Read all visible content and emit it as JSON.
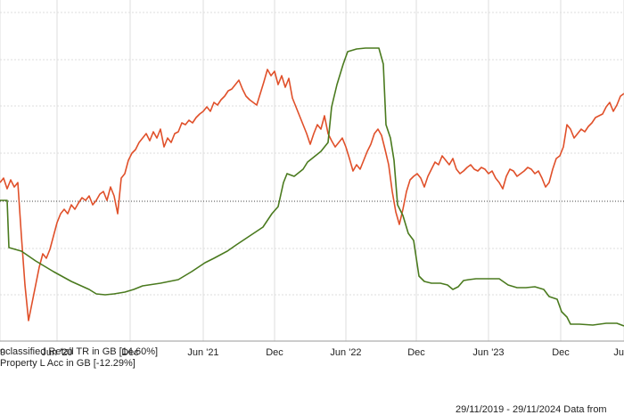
{
  "chart_data": {
    "type": "line",
    "title": "",
    "xlabel": "",
    "ylabel": "",
    "grid": true,
    "x_ticks": [
      "9",
      "Jun '20",
      "Dec",
      "Jun '21",
      "Dec",
      "Jun '22",
      "Dec",
      "Jun '23",
      "Dec",
      "Ju"
    ],
    "series": [
      {
        "name": "nclassified Retail TR in GB [14.60%]",
        "color": "#e0502a",
        "points": [
          [
            0,
            205
          ],
          [
            4,
            200
          ],
          [
            8,
            212
          ],
          [
            12,
            202
          ],
          [
            16,
            210
          ],
          [
            20,
            205
          ],
          [
            24,
            265
          ],
          [
            28,
            320
          ],
          [
            32,
            360
          ],
          [
            36,
            340
          ],
          [
            40,
            320
          ],
          [
            44,
            300
          ],
          [
            48,
            285
          ],
          [
            52,
            290
          ],
          [
            56,
            280
          ],
          [
            60,
            265
          ],
          [
            64,
            250
          ],
          [
            68,
            240
          ],
          [
            72,
            235
          ],
          [
            76,
            240
          ],
          [
            80,
            230
          ],
          [
            84,
            235
          ],
          [
            88,
            228
          ],
          [
            92,
            222
          ],
          [
            96,
            225
          ],
          [
            100,
            220
          ],
          [
            104,
            230
          ],
          [
            108,
            225
          ],
          [
            112,
            218
          ],
          [
            116,
            215
          ],
          [
            120,
            225
          ],
          [
            124,
            210
          ],
          [
            128,
            220
          ],
          [
            132,
            240
          ],
          [
            136,
            200
          ],
          [
            140,
            195
          ],
          [
            144,
            180
          ],
          [
            148,
            172
          ],
          [
            152,
            168
          ],
          [
            156,
            160
          ],
          [
            160,
            155
          ],
          [
            164,
            150
          ],
          [
            168,
            158
          ],
          [
            172,
            148
          ],
          [
            176,
            155
          ],
          [
            180,
            145
          ],
          [
            184,
            165
          ],
          [
            188,
            155
          ],
          [
            192,
            160
          ],
          [
            196,
            150
          ],
          [
            200,
            148
          ],
          [
            204,
            138
          ],
          [
            208,
            140
          ],
          [
            212,
            135
          ],
          [
            216,
            138
          ],
          [
            220,
            132
          ],
          [
            224,
            128
          ],
          [
            228,
            125
          ],
          [
            232,
            120
          ],
          [
            236,
            125
          ],
          [
            240,
            115
          ],
          [
            244,
            118
          ],
          [
            248,
            112
          ],
          [
            252,
            108
          ],
          [
            256,
            102
          ],
          [
            260,
            100
          ],
          [
            264,
            95
          ],
          [
            268,
            90
          ],
          [
            272,
            100
          ],
          [
            276,
            108
          ],
          [
            280,
            112
          ],
          [
            284,
            115
          ],
          [
            288,
            118
          ],
          [
            292,
            105
          ],
          [
            296,
            92
          ],
          [
            300,
            78
          ],
          [
            304,
            85
          ],
          [
            308,
            80
          ],
          [
            312,
            95
          ],
          [
            316,
            85
          ],
          [
            320,
            98
          ],
          [
            324,
            88
          ],
          [
            328,
            110
          ],
          [
            332,
            120
          ],
          [
            336,
            130
          ],
          [
            340,
            140
          ],
          [
            344,
            150
          ],
          [
            348,
            162
          ],
          [
            352,
            150
          ],
          [
            356,
            140
          ],
          [
            360,
            145
          ],
          [
            364,
            130
          ],
          [
            368,
            150
          ],
          [
            372,
            158
          ],
          [
            376,
            165
          ],
          [
            380,
            160
          ],
          [
            384,
            155
          ],
          [
            388,
            165
          ],
          [
            392,
            178
          ],
          [
            396,
            192
          ],
          [
            400,
            185
          ],
          [
            404,
            190
          ],
          [
            408,
            180
          ],
          [
            412,
            170
          ],
          [
            416,
            162
          ],
          [
            420,
            150
          ],
          [
            424,
            145
          ],
          [
            428,
            152
          ],
          [
            432,
            168
          ],
          [
            436,
            185
          ],
          [
            440,
            215
          ],
          [
            444,
            238
          ],
          [
            448,
            252
          ],
          [
            452,
            235
          ],
          [
            456,
            215
          ],
          [
            460,
            202
          ],
          [
            464,
            198
          ],
          [
            468,
            195
          ],
          [
            472,
            200
          ],
          [
            476,
            210
          ],
          [
            480,
            198
          ],
          [
            484,
            190
          ],
          [
            488,
            182
          ],
          [
            492,
            185
          ],
          [
            496,
            175
          ],
          [
            500,
            180
          ],
          [
            504,
            185
          ],
          [
            508,
            178
          ],
          [
            512,
            190
          ],
          [
            516,
            195
          ],
          [
            520,
            192
          ],
          [
            524,
            188
          ],
          [
            528,
            185
          ],
          [
            532,
            190
          ],
          [
            536,
            192
          ],
          [
            540,
            188
          ],
          [
            544,
            190
          ],
          [
            548,
            195
          ],
          [
            552,
            192
          ],
          [
            556,
            200
          ],
          [
            560,
            205
          ],
          [
            564,
            212
          ],
          [
            568,
            198
          ],
          [
            572,
            190
          ],
          [
            576,
            192
          ],
          [
            580,
            198
          ],
          [
            584,
            195
          ],
          [
            588,
            192
          ],
          [
            592,
            188
          ],
          [
            596,
            190
          ],
          [
            600,
            195
          ],
          [
            604,
            192
          ],
          [
            608,
            200
          ],
          [
            612,
            210
          ],
          [
            616,
            205
          ],
          [
            620,
            190
          ],
          [
            624,
            178
          ],
          [
            628,
            175
          ],
          [
            632,
            165
          ],
          [
            636,
            140
          ],
          [
            640,
            145
          ],
          [
            644,
            155
          ],
          [
            648,
            150
          ],
          [
            652,
            145
          ],
          [
            656,
            148
          ],
          [
            660,
            142
          ],
          [
            664,
            138
          ],
          [
            668,
            132
          ],
          [
            672,
            130
          ],
          [
            676,
            128
          ],
          [
            680,
            120
          ],
          [
            684,
            115
          ],
          [
            688,
            125
          ],
          [
            692,
            118
          ],
          [
            696,
            108
          ],
          [
            700,
            105
          ]
        ]
      },
      {
        "name": "Property L Acc in GB [-12.29%]",
        "color": "#4a7a1e",
        "points": [
          [
            0,
            225
          ],
          [
            8,
            225
          ],
          [
            10,
            278
          ],
          [
            24,
            282
          ],
          [
            40,
            293
          ],
          [
            60,
            305
          ],
          [
            80,
            316
          ],
          [
            100,
            325
          ],
          [
            108,
            330
          ],
          [
            118,
            331
          ],
          [
            128,
            330
          ],
          [
            140,
            328
          ],
          [
            150,
            325
          ],
          [
            160,
            321
          ],
          [
            180,
            318
          ],
          [
            200,
            314
          ],
          [
            215,
            305
          ],
          [
            230,
            295
          ],
          [
            240,
            290
          ],
          [
            255,
            282
          ],
          [
            265,
            275
          ],
          [
            280,
            265
          ],
          [
            295,
            255
          ],
          [
            305,
            240
          ],
          [
            312,
            232
          ],
          [
            318,
            205
          ],
          [
            322,
            195
          ],
          [
            330,
            198
          ],
          [
            340,
            190
          ],
          [
            345,
            182
          ],
          [
            350,
            178
          ],
          [
            360,
            170
          ],
          [
            368,
            160
          ],
          [
            372,
            120
          ],
          [
            378,
            95
          ],
          [
            385,
            72
          ],
          [
            390,
            58
          ],
          [
            400,
            55
          ],
          [
            410,
            54
          ],
          [
            425,
            54
          ],
          [
            430,
            72
          ],
          [
            433,
            140
          ],
          [
            438,
            155
          ],
          [
            442,
            180
          ],
          [
            446,
            230
          ],
          [
            452,
            242
          ],
          [
            458,
            262
          ],
          [
            464,
            270
          ],
          [
            470,
            310
          ],
          [
            476,
            316
          ],
          [
            484,
            318
          ],
          [
            494,
            318
          ],
          [
            502,
            320
          ],
          [
            508,
            325
          ],
          [
            514,
            322
          ],
          [
            520,
            315
          ],
          [
            526,
            314
          ],
          [
            534,
            313
          ],
          [
            550,
            313
          ],
          [
            560,
            313
          ],
          [
            570,
            320
          ],
          [
            580,
            323
          ],
          [
            590,
            323
          ],
          [
            600,
            322
          ],
          [
            610,
            325
          ],
          [
            616,
            333
          ],
          [
            625,
            336
          ],
          [
            630,
            350
          ],
          [
            636,
            356
          ],
          [
            640,
            364
          ],
          [
            650,
            364
          ],
          [
            665,
            365
          ],
          [
            680,
            363
          ],
          [
            692,
            363
          ],
          [
            700,
            366
          ]
        ]
      }
    ],
    "footer": "29/11/2019 - 29/11/2024 Data from"
  }
}
